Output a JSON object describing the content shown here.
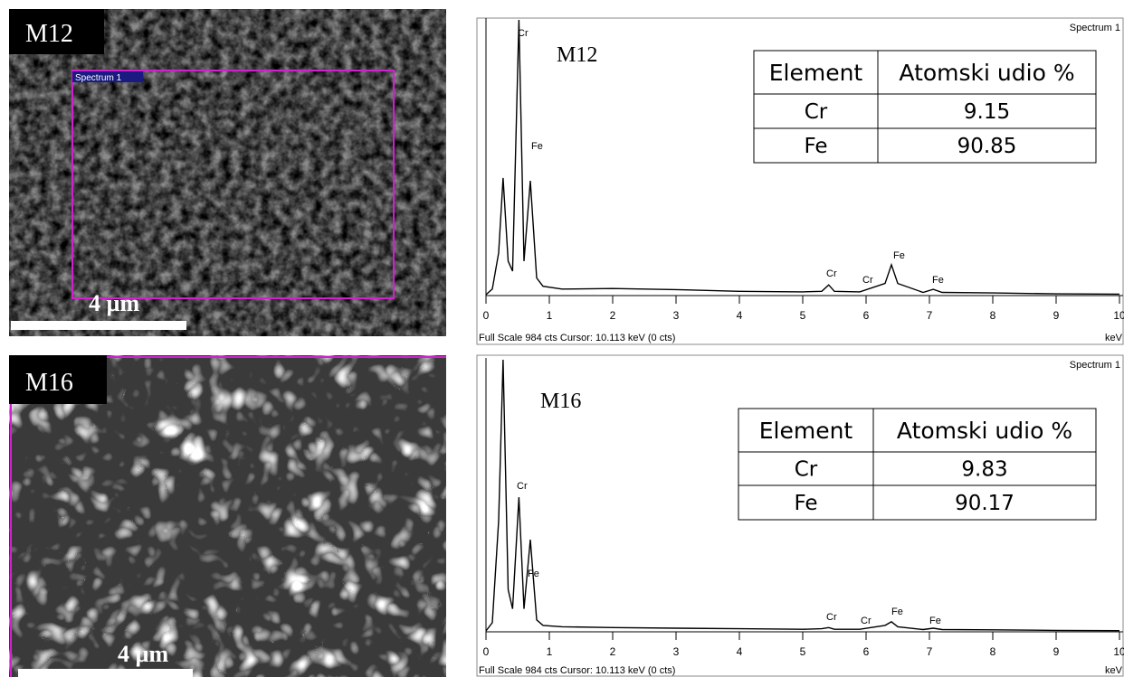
{
  "chart_data": [
    {
      "type": "line",
      "title": "Spectrum 1",
      "sample": "M12",
      "footer": "Full Scale 984 cts  Cursor: 10.113 keV (0 cts)",
      "x_unit": "keV",
      "color": "#000000",
      "x": [
        0,
        0.1,
        0.2,
        0.27,
        0.35,
        0.42,
        0.52,
        0.6,
        0.7,
        0.8,
        0.9,
        1.2,
        2,
        3,
        4,
        5,
        5.3,
        5.41,
        5.5,
        5.9,
        6.3,
        6.4,
        6.5,
        6.9,
        7.06,
        7.2,
        8,
        9,
        10
      ],
      "values": [
        0,
        20,
        150,
        418,
        120,
        84,
        984,
        120,
        408,
        60,
        30,
        20,
        22,
        18,
        12,
        10,
        12,
        35,
        12,
        10,
        40,
        107,
        40,
        8,
        19,
        8,
        6,
        3,
        2
      ],
      "xlim": [
        0,
        10
      ],
      "xticks": [
        0,
        1,
        2,
        3,
        4,
        5,
        6,
        7,
        8,
        9,
        10
      ],
      "ylim": [
        0,
        984
      ],
      "annotations": [
        "Cr",
        "Fe",
        "Cr",
        "Cr",
        "Fe",
        "Fe"
      ]
    },
    {
      "type": "line",
      "title": "Spectrum 1",
      "sample": "M16",
      "footer": "Full Scale 984 cts  Cursor: 10.113 keV (0 cts)",
      "x_unit": "keV",
      "color": "#000000",
      "x": [
        0,
        0.1,
        0.2,
        0.27,
        0.35,
        0.42,
        0.52,
        0.6,
        0.7,
        0.8,
        0.9,
        1.2,
        2,
        3,
        4,
        5,
        5.3,
        5.41,
        5.5,
        5.9,
        6.3,
        6.4,
        6.5,
        6.9,
        7.06,
        7.2,
        8,
        9,
        10
      ],
      "values": [
        0,
        30,
        400,
        984,
        150,
        80,
        485,
        80,
        331,
        40,
        20,
        15,
        12,
        10,
        8,
        6,
        8,
        12,
        6,
        6,
        20,
        33,
        15,
        5,
        10,
        5,
        4,
        2,
        1
      ],
      "xlim": [
        0,
        10
      ],
      "xticks": [
        0,
        1,
        2,
        3,
        4,
        5,
        6,
        7,
        8,
        9,
        10
      ],
      "ylim": [
        0,
        984
      ],
      "annotations": [
        "Cr",
        "Fe",
        "Cr",
        "Cr",
        "Fe",
        "Fe"
      ]
    }
  ],
  "tables": [
    {
      "header": [
        "Element",
        "Atomski udio %"
      ],
      "rows": [
        [
          "Cr",
          9.15
        ],
        [
          "Fe",
          90.85
        ]
      ]
    },
    {
      "header": [
        "Element",
        "Atomski udio %"
      ],
      "rows": [
        [
          "Cr",
          9.83
        ],
        [
          "Fe",
          90.17
        ]
      ]
    }
  ],
  "images": [
    {
      "label": "M12",
      "scale": "4 µm",
      "region": "Spectrum 1"
    },
    {
      "label": "M16",
      "scale": "4 µm"
    }
  ]
}
